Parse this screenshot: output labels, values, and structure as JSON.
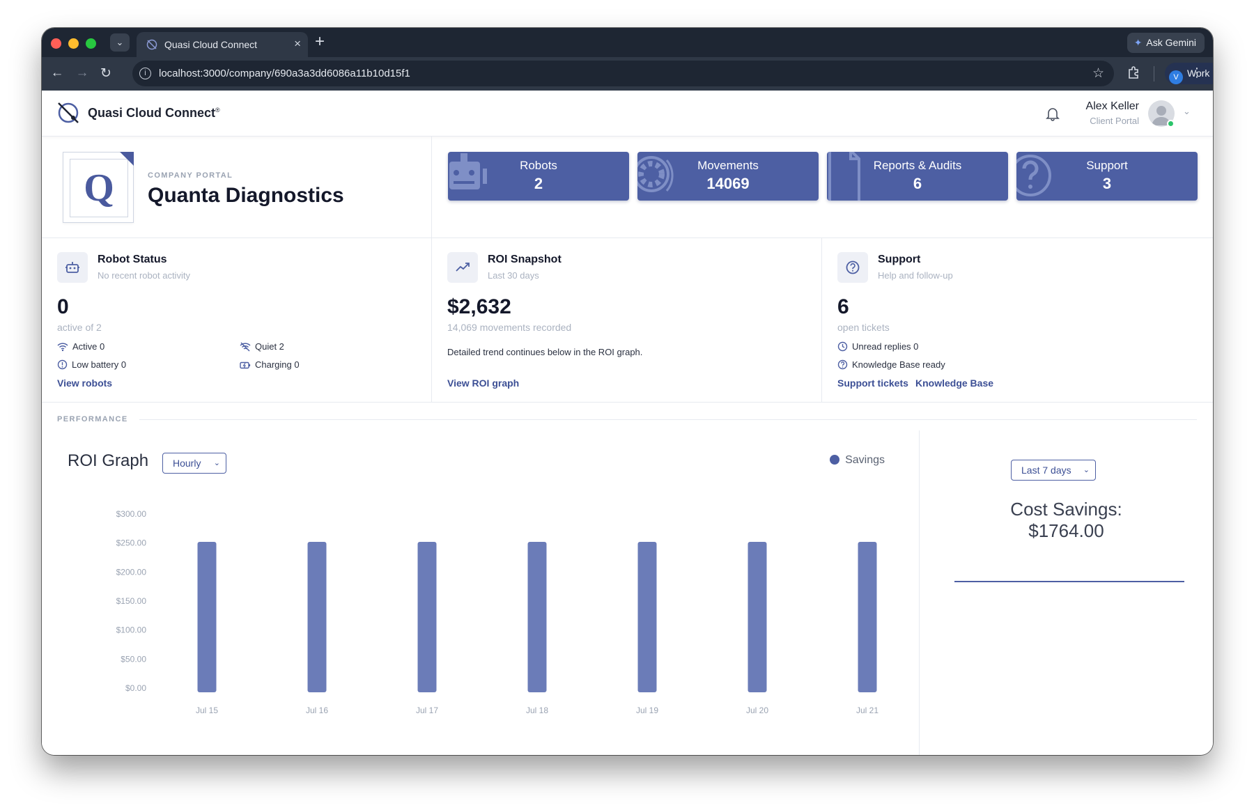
{
  "browser": {
    "tab_title": "Quasi Cloud Connect",
    "url": "localhost:3000/company/690a3a3dd6086a11b10d15f1",
    "ask_gemini": "Ask Gemini",
    "profile_initial": "V",
    "profile_label": "Work"
  },
  "header": {
    "brand": "Quasi Cloud Connect",
    "brand_mark": "®",
    "user_name": "Alex Keller",
    "user_role": "Client Portal"
  },
  "company": {
    "eyebrow": "COMPANY PORTAL",
    "name": "Quanta Diagnostics",
    "logo_letter": "Q"
  },
  "stats": [
    {
      "label": "Robots",
      "value": "2",
      "icon": "robot-icon"
    },
    {
      "label": "Movements",
      "value": "14069",
      "icon": "movement-icon"
    },
    {
      "label": "Reports & Audits",
      "value": "6",
      "icon": "document-icon"
    },
    {
      "label": "Support",
      "value": "3",
      "icon": "help-icon"
    }
  ],
  "robot_status": {
    "title": "Robot Status",
    "subtitle": "No recent robot activity",
    "big": "0",
    "big_sub": "active of 2",
    "active": "Active 0",
    "quiet": "Quiet 2",
    "low_battery": "Low battery 0",
    "charging": "Charging 0",
    "link": "View robots"
  },
  "roi_snapshot": {
    "title": "ROI Snapshot",
    "subtitle": "Last 30 days",
    "big": "$2,632",
    "big_sub": "14,069 movements recorded",
    "desc": "Detailed trend continues below in the ROI graph.",
    "link": "View ROI graph"
  },
  "support": {
    "title": "Support",
    "subtitle": "Help and follow-up",
    "big": "6",
    "big_sub": "open tickets",
    "unread": "Unread replies 0",
    "kb": "Knowledge Base ready",
    "link_tickets": "Support tickets",
    "link_kb": "Knowledge Base"
  },
  "performance": {
    "label": "PERFORMANCE",
    "roi_title": "ROI Graph",
    "interval": "Hourly",
    "legend": "Savings",
    "range": "Last 7 days",
    "cost_title": "Cost Savings:",
    "cost_value": "$1764.00"
  },
  "colors": {
    "accent": "#4d5fa3",
    "bar": "#6b7cb8"
  },
  "chart_data": {
    "type": "bar",
    "categories": [
      "Jul 15",
      "Jul 16",
      "Jul 17",
      "Jul 18",
      "Jul 19",
      "Jul 20",
      "Jul 21"
    ],
    "series": [
      {
        "name": "Savings",
        "values": [
          252,
          252,
          252,
          252,
          252,
          252,
          252
        ]
      }
    ],
    "yticks": [
      "$0.00",
      "$50.00",
      "$100.00",
      "$150.00",
      "$200.00",
      "$250.00",
      "$300.00"
    ],
    "ylim": [
      0,
      300
    ],
    "grid": false,
    "legend": "top-right"
  }
}
